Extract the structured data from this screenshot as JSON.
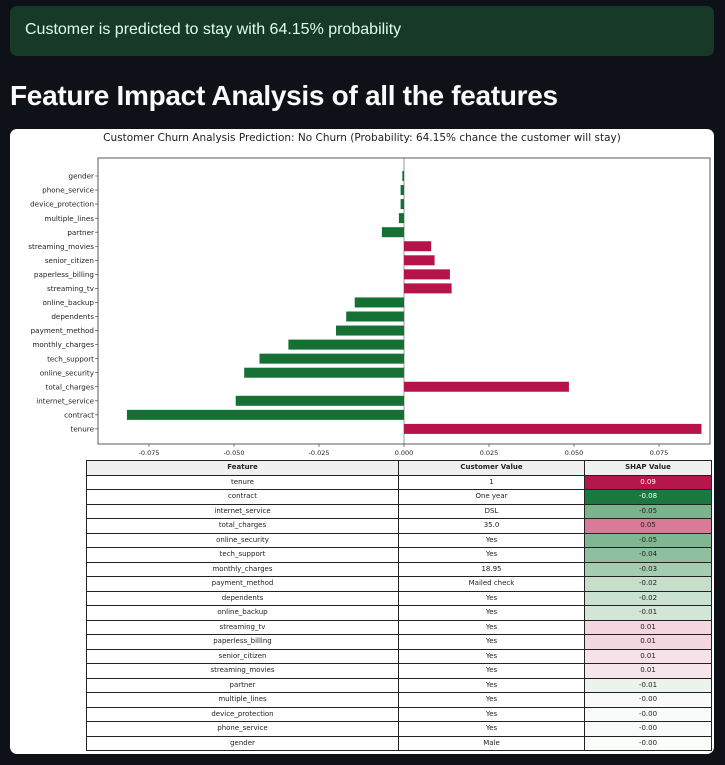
{
  "alert": {
    "text": "Customer is predicted to stay with 64.15% probability",
    "color": "#173928"
  },
  "page": {
    "heading": "Feature Impact Analysis of all the features"
  },
  "chart_data": {
    "type": "bar",
    "orientation": "horizontal",
    "title": "Customer Churn Analysis Prediction: No Churn (Probability: 64.15% chance the customer will stay)",
    "xlabel": "",
    "ylabel": "",
    "xlim": [
      -0.09,
      0.09
    ],
    "xticks": [
      -0.075,
      -0.05,
      -0.025,
      0.0,
      0.025,
      0.05,
      0.075
    ],
    "xtick_labels": [
      "-0.075",
      "-0.050",
      "-0.025",
      "0.000",
      "0.025",
      "0.050",
      "0.075"
    ],
    "grid": false,
    "colors": {
      "positive": "#b5134a",
      "negative": "#157033"
    },
    "categories": [
      "gender",
      "phone_service",
      "device_protection",
      "multiple_lines",
      "partner",
      "streaming_movies",
      "senior_citizen",
      "paperless_billing",
      "streaming_tv",
      "online_backup",
      "dependents",
      "payment_method",
      "monthly_charges",
      "tech_support",
      "online_security",
      "total_charges",
      "internet_service",
      "contract",
      "tenure"
    ],
    "values": [
      -0.0005,
      -0.001,
      -0.001,
      -0.0015,
      -0.0065,
      0.008,
      0.009,
      0.0135,
      0.014,
      -0.0145,
      -0.017,
      -0.02,
      -0.034,
      -0.0425,
      -0.047,
      0.0485,
      -0.0495,
      -0.0815,
      0.0875
    ]
  },
  "table": {
    "headers": [
      "Feature",
      "Customer Value",
      "SHAP Value"
    ],
    "rows": [
      {
        "feature": "tenure",
        "value": "1",
        "shap": "0.09",
        "color": "#b5174b",
        "dark": true
      },
      {
        "feature": "contract",
        "value": "One year",
        "shap": "-0.08",
        "color": "#187a3e",
        "dark": true
      },
      {
        "feature": "internet_service",
        "value": "DSL",
        "shap": "-0.05",
        "color": "#7bb48c",
        "dark": false
      },
      {
        "feature": "total_charges",
        "value": "35.0",
        "shap": "0.05",
        "color": "#d77b98",
        "dark": false
      },
      {
        "feature": "online_security",
        "value": "Yes",
        "shap": "-0.05",
        "color": "#80b791",
        "dark": false
      },
      {
        "feature": "tech_support",
        "value": "Yes",
        "shap": "-0.04",
        "color": "#8ec09f",
        "dark": false
      },
      {
        "feature": "monthly_charges",
        "value": "18.95",
        "shap": "-0.03",
        "color": "#a3ccb0",
        "dark": false
      },
      {
        "feature": "payment_method",
        "value": "Mailed check",
        "shap": "-0.02",
        "color": "#c5dfcb",
        "dark": false
      },
      {
        "feature": "dependents",
        "value": "Yes",
        "shap": "-0.02",
        "color": "#cae2d0",
        "dark": false
      },
      {
        "feature": "online_backup",
        "value": "Yes",
        "shap": "-0.01",
        "color": "#d2e6d7",
        "dark": false
      },
      {
        "feature": "streaming_tv",
        "value": "Yes",
        "shap": "0.01",
        "color": "#f3d6df",
        "dark": false
      },
      {
        "feature": "paperless_billing",
        "value": "Yes",
        "shap": "0.01",
        "color": "#f3d8e1",
        "dark": false
      },
      {
        "feature": "senior_citizen",
        "value": "Yes",
        "shap": "0.01",
        "color": "#f6e2e8",
        "dark": false
      },
      {
        "feature": "streaming_movies",
        "value": "Yes",
        "shap": "0.01",
        "color": "#f7e6eb",
        "dark": false
      },
      {
        "feature": "partner",
        "value": "Yes",
        "shap": "-0.01",
        "color": "#eaf3ec",
        "dark": false
      },
      {
        "feature": "multiple_lines",
        "value": "Yes",
        "shap": "-0.00",
        "color": "#f8fbf9",
        "dark": false
      },
      {
        "feature": "device_protection",
        "value": "Yes",
        "shap": "-0.00",
        "color": "#f8fbf9",
        "dark": false
      },
      {
        "feature": "phone_service",
        "value": "Yes",
        "shap": "-0.00",
        "color": "#f8fbf9",
        "dark": false
      },
      {
        "feature": "gender",
        "value": "Male",
        "shap": "-0.00",
        "color": "#fbfdfb",
        "dark": false
      }
    ]
  }
}
